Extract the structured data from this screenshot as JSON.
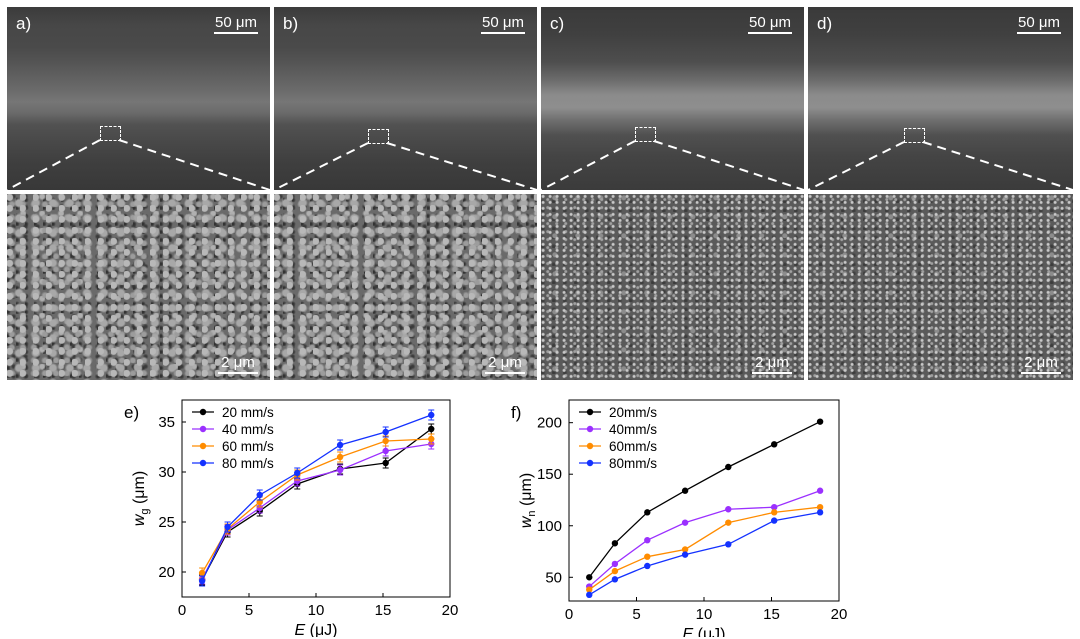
{
  "panels": [
    {
      "label": "a)",
      "scale_top": "50 μm",
      "scale_bottom": "2 μm"
    },
    {
      "label": "b)",
      "scale_top": "50 μm",
      "scale_bottom": "2 μm"
    },
    {
      "label": "c)",
      "scale_top": "50 μm",
      "scale_bottom": "2 μm"
    },
    {
      "label": "d)",
      "scale_top": "50 μm",
      "scale_bottom": "2 μm"
    }
  ],
  "chart_data": [
    {
      "panel": "e)",
      "type": "line",
      "xlabel_italic": "E",
      "xlabel_unit": " (μJ)",
      "ylabel_italic": "w",
      "ylabel_sub": "g",
      "ylabel_unit": " (μm)",
      "xlim": [
        0,
        20
      ],
      "ylim": [
        17.5,
        37.2
      ],
      "xticks": [
        0,
        5,
        10,
        15,
        20
      ],
      "yticks": [
        20,
        25,
        30,
        35
      ],
      "grid": false,
      "legend": "top-left",
      "error_bars": true,
      "series": [
        {
          "name": "20 mm/s",
          "color": "#000000",
          "x": [
            1.5,
            3.4,
            5.8,
            8.6,
            11.8,
            15.2,
            18.6
          ],
          "y": [
            19.2,
            24.0,
            26.1,
            28.8,
            30.3,
            30.9,
            34.3
          ]
        },
        {
          "name": "40 mm/s",
          "color": "#9b30ff",
          "x": [
            1.5,
            3.4,
            5.8,
            8.6,
            11.8,
            15.2,
            18.6
          ],
          "y": [
            19.3,
            24.2,
            26.4,
            29.1,
            30.2,
            32.1,
            32.8
          ]
        },
        {
          "name": "60 mm/s",
          "color": "#ff8c00",
          "x": [
            1.5,
            3.4,
            5.8,
            8.6,
            11.8,
            15.2,
            18.6
          ],
          "y": [
            19.9,
            24.3,
            27.0,
            29.7,
            31.5,
            33.1,
            33.3
          ]
        },
        {
          "name": "80 mm/s",
          "color": "#1432ff",
          "x": [
            1.5,
            3.4,
            5.8,
            8.6,
            11.8,
            15.2,
            18.6
          ],
          "y": [
            19.1,
            24.5,
            27.7,
            29.9,
            32.7,
            34.0,
            35.7
          ]
        }
      ]
    },
    {
      "panel": "f)",
      "type": "line",
      "xlabel_italic": "E",
      "xlabel_unit": " (μJ)",
      "ylabel_italic": "w",
      "ylabel_sub": "n",
      "ylabel_unit": " (μm)",
      "xlim": [
        0,
        20
      ],
      "ylim": [
        27,
        222
      ],
      "xticks": [
        0,
        5,
        10,
        15,
        20
      ],
      "yticks": [
        50,
        100,
        150,
        200
      ],
      "grid": false,
      "legend": "top-left",
      "error_bars": false,
      "series": [
        {
          "name": "20mm/s",
          "color": "#000000",
          "x": [
            1.5,
            3.4,
            5.8,
            8.6,
            11.8,
            15.2,
            18.6
          ],
          "y": [
            50,
            83,
            113,
            134,
            157,
            179,
            201
          ]
        },
        {
          "name": "40mm/s",
          "color": "#9b30ff",
          "x": [
            1.5,
            3.4,
            5.8,
            8.6,
            11.8,
            15.2,
            18.6
          ],
          "y": [
            41,
            63,
            86,
            103,
            116,
            118,
            134
          ]
        },
        {
          "name": "60mm/s",
          "color": "#ff8c00",
          "x": [
            1.5,
            3.4,
            5.8,
            8.6,
            11.8,
            15.2,
            18.6
          ],
          "y": [
            38,
            56,
            70,
            77,
            103,
            113,
            118
          ]
        },
        {
          "name": "80mm/s",
          "color": "#1432ff",
          "x": [
            1.5,
            3.4,
            5.8,
            8.6,
            11.8,
            15.2,
            18.6
          ],
          "y": [
            33,
            48,
            61,
            72,
            82,
            105,
            113
          ]
        }
      ]
    }
  ]
}
